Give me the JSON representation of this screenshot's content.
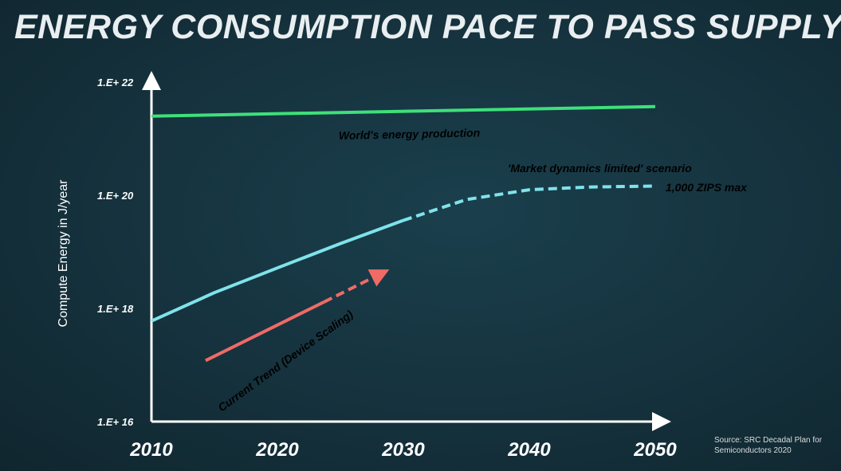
{
  "title": "ENERGY CONSUMPTION PACE TO PASS SUPPLY",
  "source": [
    "Source: SRC Decadal Plan for",
    "Semiconductors 2020"
  ],
  "colors": {
    "background": "#163440",
    "production": "#3ee07a",
    "consumption": "#7fe3ea",
    "trend": "#f06a66",
    "axis": "#ffffff"
  },
  "chart_data": {
    "type": "line",
    "title": "ENERGY CONSUMPTION PACE TO PASS SUPPLY",
    "xlabel": "",
    "ylabel": "Compute Energy in J/year",
    "x_ticks": [
      "2010",
      "2020",
      "2030",
      "2040",
      "2050"
    ],
    "y_ticks": [
      "1.E+ 16",
      "1.E+ 18",
      "1.E+ 20",
      "1.E+ 22"
    ],
    "y_scale": "log",
    "xlim": [
      2010,
      2050
    ],
    "ylim": [
      1e+16,
      1e+22
    ],
    "series": [
      {
        "name": "World's energy production",
        "color": "#3ee07a",
        "style": "solid",
        "x": [
          2010,
          2050
        ],
        "y": [
          2.5e+21,
          3.7e+21
        ]
      },
      {
        "name": "",
        "color": "#7fe3ea",
        "style": "solid",
        "x": [
          2010,
          2015,
          2020,
          2025,
          2030
        ],
        "y": [
          6e+17,
          1.9e+18,
          5.2e+18,
          1.4e+19,
          3.6e+19
        ]
      },
      {
        "name": "",
        "color": "#7fe3ea",
        "style": "dashed",
        "x": [
          2030,
          2035,
          2040,
          2045,
          2050
        ],
        "y": [
          3.6e+19,
          8.4e+19,
          1.25e+20,
          1.4e+20,
          1.45e+20
        ]
      },
      {
        "name": "Current Trend (Device Scaling)",
        "color": "#f06a66",
        "style": "solid",
        "x": [
          2014.3,
          2023.7
        ],
        "y": [
          1.2e+17,
          1.3e+18
        ]
      },
      {
        "name": "",
        "color": "#f06a66",
        "style": "dashed",
        "x": [
          2023.7,
          2028.2
        ],
        "y": [
          1.3e+18,
          4.1e+18
        ]
      }
    ],
    "annotations": [
      {
        "text": "World's energy production",
        "color": "#3ee07a"
      },
      {
        "text": "'Market dynamics limited' scenario",
        "color": "#ffffff"
      },
      {
        "text": "1,000 ZIPS max",
        "color": "#7fe3ea"
      },
      {
        "text": "Current Trend (Device Scaling)",
        "color": "#f06a66"
      }
    ],
    "grid": false,
    "legend": "none"
  }
}
